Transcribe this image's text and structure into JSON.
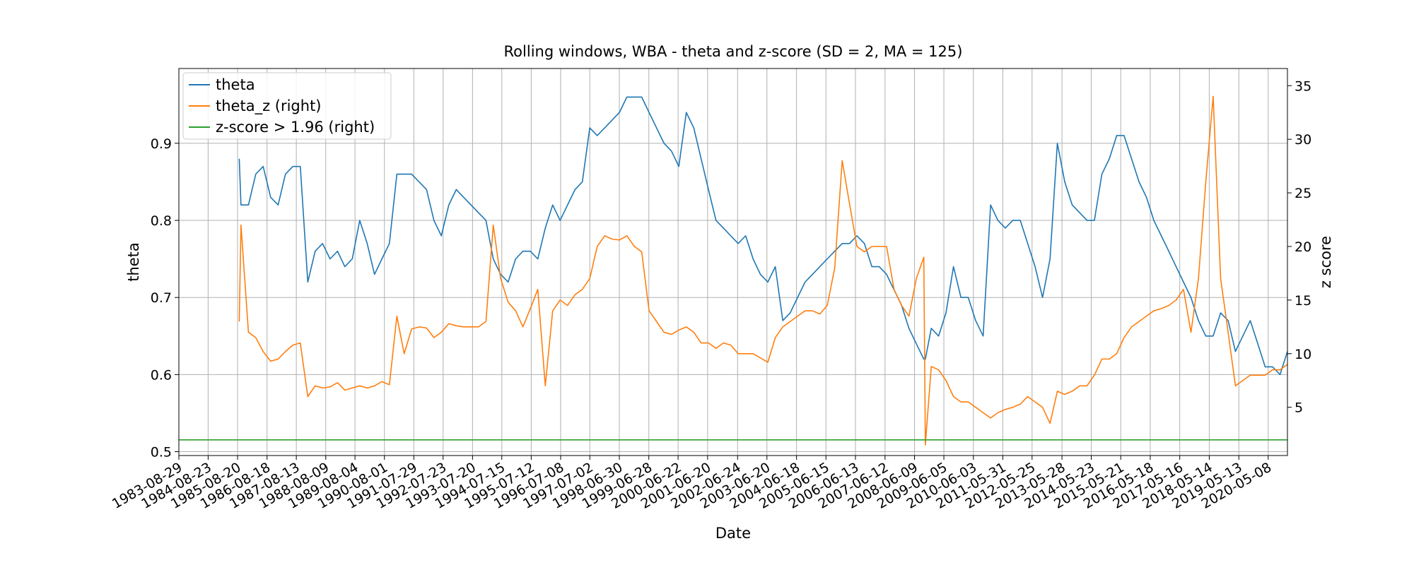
{
  "chart_data": {
    "type": "line",
    "title": "Rolling windows, WBA - theta and z-score (SD = 2, MA = 125)",
    "x_label": "Date",
    "y_label": "theta",
    "y2_label": "z score",
    "grid": true,
    "legend": "upper left",
    "xlim": [
      "1983-08-29",
      "2020-12-31"
    ],
    "xticks": [
      "1983-08-29",
      "1984-08-23",
      "1985-08-20",
      "1986-08-18",
      "1987-08-13",
      "1988-08-09",
      "1989-08-04",
      "1990-08-01",
      "1991-07-29",
      "1992-07-23",
      "1993-07-20",
      "1994-07-15",
      "1995-07-12",
      "1996-07-08",
      "1997-07-02",
      "1998-06-30",
      "1999-06-28",
      "2000-06-22",
      "2001-06-20",
      "2002-06-24",
      "2003-06-20",
      "2004-06-18",
      "2005-06-15",
      "2006-06-13",
      "2007-06-12",
      "2008-06-09",
      "2009-06-05",
      "2010-06-03",
      "2011-05-31",
      "2012-05-25",
      "2013-05-28",
      "2014-05-23",
      "2015-05-21",
      "2016-05-18",
      "2017-05-16",
      "2018-05-14",
      "2019-05-13",
      "2020-05-08"
    ],
    "ylim": [
      0.495,
      0.997
    ],
    "yticks": [
      0.5,
      0.6,
      0.7,
      0.8,
      0.9
    ],
    "y2lim": [
      0.5,
      36.6
    ],
    "y2ticks": [
      5,
      10,
      15,
      20,
      25,
      30,
      35
    ],
    "x": [
      "1985-09-10",
      "1985-10-01",
      "1986-01-01",
      "1986-04-01",
      "1986-07-01",
      "1986-10-01",
      "1987-01-01",
      "1987-04-01",
      "1987-07-01",
      "1987-10-01",
      "1988-01-01",
      "1988-04-01",
      "1988-07-01",
      "1988-10-01",
      "1989-01-01",
      "1989-04-01",
      "1989-07-01",
      "1989-10-01",
      "1990-01-01",
      "1990-04-01",
      "1990-07-01",
      "1990-10-01",
      "1991-01-01",
      "1991-04-01",
      "1991-07-01",
      "1991-10-01",
      "1992-01-01",
      "1992-04-01",
      "1992-07-01",
      "1992-10-01",
      "1993-01-01",
      "1993-04-01",
      "1993-07-01",
      "1993-10-01",
      "1994-01-01",
      "1994-04-01",
      "1994-07-01",
      "1994-10-01",
      "1995-01-01",
      "1995-04-01",
      "1995-07-01",
      "1995-10-01",
      "1996-01-01",
      "1996-04-01",
      "1996-07-01",
      "1996-10-01",
      "1997-01-01",
      "1997-04-01",
      "1997-07-01",
      "1997-10-01",
      "1998-01-01",
      "1998-04-01",
      "1998-07-01",
      "1998-10-01",
      "1999-01-01",
      "1999-04-01",
      "1999-07-01",
      "1999-10-01",
      "2000-01-01",
      "2000-04-01",
      "2000-07-01",
      "2000-10-01",
      "2001-01-01",
      "2001-04-01",
      "2001-07-01",
      "2001-10-01",
      "2002-01-01",
      "2002-04-01",
      "2002-07-01",
      "2002-10-01",
      "2003-01-01",
      "2003-04-01",
      "2003-07-01",
      "2003-10-01",
      "2004-01-01",
      "2004-04-01",
      "2004-07-01",
      "2004-10-01",
      "2005-01-01",
      "2005-04-01",
      "2005-07-01",
      "2005-10-01",
      "2006-01-01",
      "2006-04-01",
      "2006-07-01",
      "2006-10-01",
      "2007-01-01",
      "2007-04-01",
      "2007-07-01",
      "2007-10-01",
      "2008-01-01",
      "2008-04-01",
      "2008-07-01",
      "2008-10-01",
      "2008-10-20",
      "2009-01-01",
      "2009-04-01",
      "2009-07-01",
      "2009-10-01",
      "2010-01-01",
      "2010-04-01",
      "2010-07-01",
      "2010-10-01",
      "2011-01-01",
      "2011-04-01",
      "2011-07-01",
      "2011-10-01",
      "2012-01-01",
      "2012-04-01",
      "2012-07-01",
      "2012-10-01",
      "2013-01-01",
      "2013-04-01",
      "2013-07-01",
      "2013-10-01",
      "2014-01-01",
      "2014-04-01",
      "2014-07-01",
      "2014-10-01",
      "2015-01-01",
      "2015-04-01",
      "2015-07-01",
      "2015-10-01",
      "2016-01-01",
      "2016-04-01",
      "2016-07-01",
      "2016-10-01",
      "2017-01-01",
      "2017-04-01",
      "2017-07-01",
      "2017-10-01",
      "2018-01-01",
      "2018-04-01",
      "2018-07-01",
      "2018-10-01",
      "2019-01-01",
      "2019-04-01",
      "2019-07-01",
      "2019-10-01",
      "2020-01-01",
      "2020-04-01",
      "2020-07-01",
      "2020-10-01",
      "2020-12-31"
    ],
    "series": [
      {
        "name": "theta",
        "color": "#1f77b4",
        "axis": "y",
        "values": [
          0.88,
          0.82,
          0.82,
          0.86,
          0.87,
          0.83,
          0.82,
          0.86,
          0.87,
          0.87,
          0.72,
          0.76,
          0.77,
          0.75,
          0.76,
          0.74,
          0.75,
          0.8,
          0.77,
          0.73,
          0.75,
          0.77,
          0.86,
          0.86,
          0.86,
          0.85,
          0.84,
          0.8,
          0.78,
          0.82,
          0.84,
          0.83,
          0.82,
          0.81,
          0.8,
          0.75,
          0.73,
          0.72,
          0.75,
          0.76,
          0.76,
          0.75,
          0.79,
          0.82,
          0.8,
          0.82,
          0.84,
          0.85,
          0.92,
          0.91,
          0.92,
          0.93,
          0.94,
          0.96,
          0.96,
          0.96,
          0.94,
          0.92,
          0.9,
          0.89,
          0.87,
          0.94,
          0.92,
          0.88,
          0.84,
          0.8,
          0.79,
          0.78,
          0.77,
          0.78,
          0.75,
          0.73,
          0.72,
          0.74,
          0.67,
          0.68,
          0.7,
          0.72,
          0.73,
          0.74,
          0.75,
          0.76,
          0.77,
          0.77,
          0.78,
          0.77,
          0.74,
          0.74,
          0.73,
          0.71,
          0.69,
          0.66,
          0.64,
          0.62,
          0.62,
          0.66,
          0.65,
          0.68,
          0.74,
          0.7,
          0.7,
          0.67,
          0.65,
          0.82,
          0.8,
          0.79,
          0.8,
          0.8,
          0.77,
          0.74,
          0.7,
          0.75,
          0.9,
          0.85,
          0.82,
          0.81,
          0.8,
          0.8,
          0.86,
          0.88,
          0.91,
          0.91,
          0.88,
          0.85,
          0.83,
          0.8,
          0.78,
          0.76,
          0.74,
          0.72,
          0.7,
          0.67,
          0.65,
          0.65,
          0.68,
          0.67,
          0.63,
          0.65,
          0.67,
          0.64,
          0.61,
          0.61,
          0.6,
          0.63
        ]
      },
      {
        "name": "theta_z (right)",
        "color": "#ff7f0e",
        "axis": "y2",
        "values": [
          13,
          22,
          12,
          11.5,
          10.2,
          9.3,
          9.5,
          10.2,
          10.8,
          11,
          6,
          7,
          6.8,
          6.9,
          7.3,
          6.6,
          6.8,
          7,
          6.8,
          7,
          7.4,
          7.1,
          13.5,
          10,
          12.3,
          12.5,
          12.4,
          11.5,
          12,
          12.8,
          12.6,
          12.5,
          12.5,
          12.5,
          13,
          22,
          17,
          14.8,
          14,
          12.5,
          14.2,
          16,
          7,
          14,
          15,
          14.5,
          15.5,
          16,
          17,
          20,
          21,
          20.7,
          20.6,
          21,
          20,
          19.5,
          14,
          13,
          12,
          11.8,
          12.2,
          12.5,
          12,
          11,
          11,
          10.5,
          11,
          10.8,
          10,
          10,
          10,
          9.6,
          9.2,
          11.5,
          12.5,
          13,
          13.5,
          14,
          14,
          13.7,
          14.5,
          18,
          28,
          24,
          20,
          19.5,
          20,
          20,
          20,
          16,
          14.5,
          13.5,
          17,
          19,
          1.5,
          8.8,
          8.5,
          7.5,
          6,
          5.5,
          5.5,
          5,
          4.5,
          4,
          4.5,
          4.8,
          5,
          5.3,
          6,
          5.5,
          5,
          3.5,
          6.5,
          6.2,
          6.5,
          7,
          7,
          8,
          9.5,
          9.5,
          10,
          11.5,
          12.5,
          13,
          13.5,
          14,
          14.2,
          14.5,
          15,
          16,
          12,
          17,
          26,
          34,
          17,
          12,
          7,
          7.5,
          8,
          8,
          8,
          8.5,
          8.5,
          9
        ]
      },
      {
        "name": "z-score > 1.96 (right)",
        "color": "#2ca02c",
        "axis": "y2",
        "x": [
          "1983-08-29",
          "2020-12-31"
        ],
        "values": [
          1.96,
          1.96
        ]
      }
    ]
  }
}
